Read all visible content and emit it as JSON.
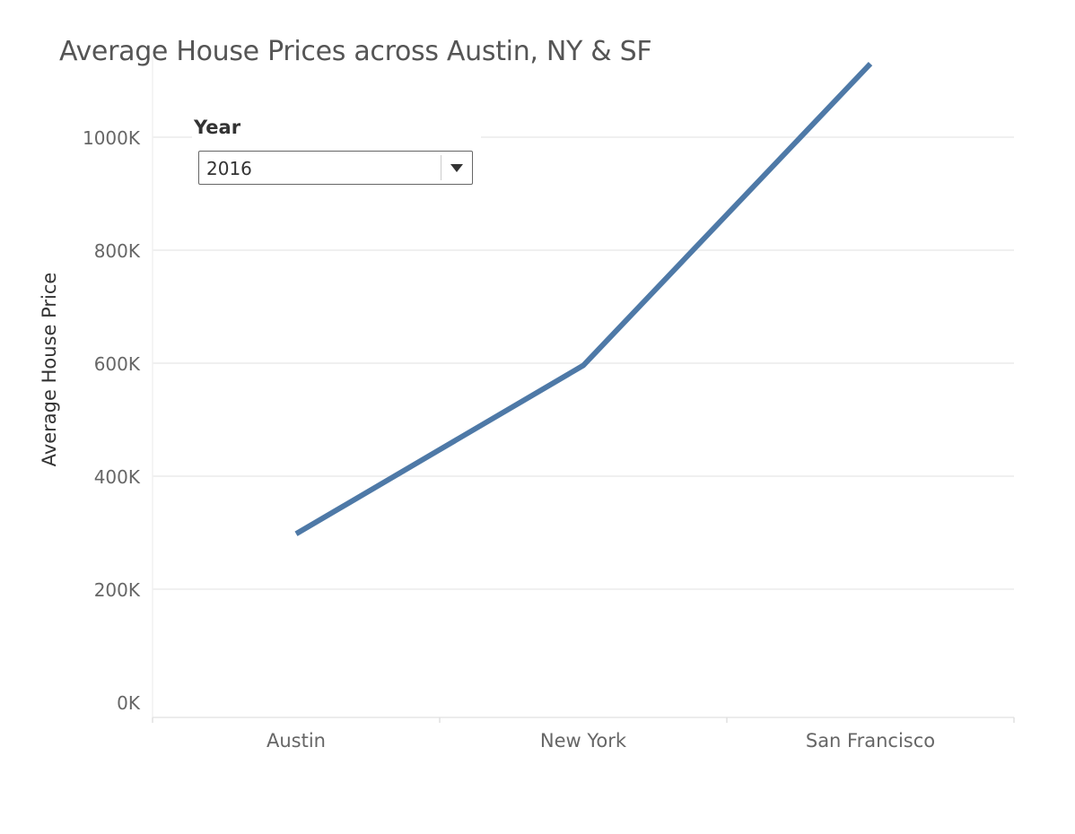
{
  "title": "Average House Prices across Austin, NY & SF",
  "filter": {
    "label": "Year",
    "selected": "2016"
  },
  "colors": {
    "series": "#4e79a7",
    "grid": "#ebebeb",
    "axis_text": "#666666"
  },
  "chart_data": {
    "type": "line",
    "title": "Average House Prices across Austin, NY & SF",
    "xlabel": "",
    "ylabel": "Average House Price",
    "categories": [
      "Austin",
      "New York",
      "San Francisco"
    ],
    "series": [
      {
        "values": [
          298000,
          596000,
          1130000
        ]
      }
    ],
    "ylim": [
      0,
      1100000
    ],
    "yticks": [
      0,
      200000,
      400000,
      600000,
      800000,
      1000000
    ],
    "ytick_labels": [
      "0K",
      "200K",
      "400K",
      "600K",
      "800K",
      "1000K"
    ],
    "grid": true,
    "legend": "none"
  }
}
